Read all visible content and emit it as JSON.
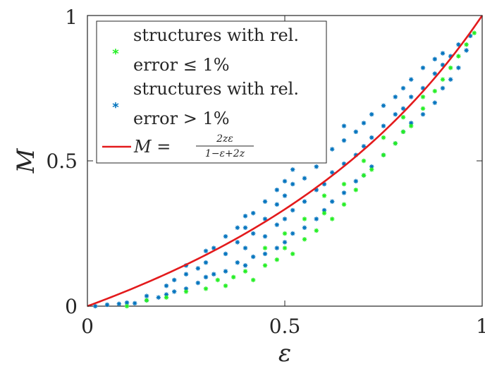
{
  "chart_data": {
    "type": "scatter",
    "xlabel": "ε",
    "ylabel": "M",
    "xlim": [
      0,
      1
    ],
    "ylim": [
      0,
      1
    ],
    "x_ticks": [
      "0",
      "0.5",
      "1"
    ],
    "y_ticks": [
      "0",
      "0.5",
      "1"
    ],
    "grid": false,
    "legend_position": "top-left",
    "z": 0.5,
    "series": [
      {
        "name": "structures with rel. error > 1%",
        "legend_lines": [
          "structures with rel.",
          "error > 1%"
        ],
        "marker": "*",
        "color": "#0072BD",
        "points": [
          [
            0.02,
            0.0
          ],
          [
            0.05,
            0.005
          ],
          [
            0.08,
            0.008
          ],
          [
            0.1,
            0.012
          ],
          [
            0.12,
            0.01
          ],
          [
            0.15,
            0.02
          ],
          [
            0.15,
            0.035
          ],
          [
            0.18,
            0.03
          ],
          [
            0.2,
            0.04
          ],
          [
            0.2,
            0.07
          ],
          [
            0.22,
            0.05
          ],
          [
            0.22,
            0.09
          ],
          [
            0.25,
            0.06
          ],
          [
            0.25,
            0.11
          ],
          [
            0.25,
            0.14
          ],
          [
            0.28,
            0.08
          ],
          [
            0.28,
            0.13
          ],
          [
            0.3,
            0.1
          ],
          [
            0.3,
            0.15
          ],
          [
            0.3,
            0.19
          ],
          [
            0.32,
            0.11
          ],
          [
            0.32,
            0.2
          ],
          [
            0.35,
            0.12
          ],
          [
            0.35,
            0.18
          ],
          [
            0.35,
            0.24
          ],
          [
            0.38,
            0.15
          ],
          [
            0.38,
            0.22
          ],
          [
            0.38,
            0.27
          ],
          [
            0.4,
            0.14
          ],
          [
            0.4,
            0.2
          ],
          [
            0.4,
            0.27
          ],
          [
            0.4,
            0.31
          ],
          [
            0.42,
            0.17
          ],
          [
            0.42,
            0.25
          ],
          [
            0.42,
            0.32
          ],
          [
            0.45,
            0.18
          ],
          [
            0.45,
            0.24
          ],
          [
            0.45,
            0.3
          ],
          [
            0.45,
            0.36
          ],
          [
            0.48,
            0.2
          ],
          [
            0.48,
            0.28
          ],
          [
            0.48,
            0.35
          ],
          [
            0.48,
            0.4
          ],
          [
            0.5,
            0.22
          ],
          [
            0.5,
            0.3
          ],
          [
            0.5,
            0.38
          ],
          [
            0.5,
            0.43
          ],
          [
            0.52,
            0.25
          ],
          [
            0.52,
            0.33
          ],
          [
            0.52,
            0.42
          ],
          [
            0.52,
            0.47
          ],
          [
            0.55,
            0.27
          ],
          [
            0.55,
            0.36
          ],
          [
            0.55,
            0.44
          ],
          [
            0.55,
            0.5
          ],
          [
            0.58,
            0.3
          ],
          [
            0.58,
            0.4
          ],
          [
            0.58,
            0.48
          ],
          [
            0.58,
            0.53
          ],
          [
            0.6,
            0.33
          ],
          [
            0.6,
            0.42
          ],
          [
            0.6,
            0.5
          ],
          [
            0.6,
            0.55
          ],
          [
            0.62,
            0.36
          ],
          [
            0.62,
            0.46
          ],
          [
            0.62,
            0.54
          ],
          [
            0.65,
            0.39
          ],
          [
            0.65,
            0.49
          ],
          [
            0.65,
            0.57
          ],
          [
            0.65,
            0.62
          ],
          [
            0.68,
            0.43
          ],
          [
            0.68,
            0.52
          ],
          [
            0.68,
            0.6
          ],
          [
            0.7,
            0.45
          ],
          [
            0.7,
            0.55
          ],
          [
            0.7,
            0.63
          ],
          [
            0.72,
            0.48
          ],
          [
            0.72,
            0.58
          ],
          [
            0.72,
            0.66
          ],
          [
            0.75,
            0.52
          ],
          [
            0.75,
            0.62
          ],
          [
            0.75,
            0.69
          ],
          [
            0.78,
            0.56
          ],
          [
            0.78,
            0.66
          ],
          [
            0.78,
            0.72
          ],
          [
            0.8,
            0.6
          ],
          [
            0.8,
            0.68
          ],
          [
            0.8,
            0.75
          ],
          [
            0.82,
            0.63
          ],
          [
            0.82,
            0.72
          ],
          [
            0.82,
            0.78
          ],
          [
            0.85,
            0.66
          ],
          [
            0.85,
            0.75
          ],
          [
            0.85,
            0.82
          ],
          [
            0.88,
            0.7
          ],
          [
            0.88,
            0.8
          ],
          [
            0.88,
            0.85
          ],
          [
            0.9,
            0.75
          ],
          [
            0.9,
            0.83
          ],
          [
            0.9,
            0.87
          ],
          [
            0.92,
            0.78
          ],
          [
            0.92,
            0.86
          ],
          [
            0.94,
            0.82
          ],
          [
            0.94,
            0.9
          ],
          [
            0.96,
            0.88
          ],
          [
            0.97,
            0.93
          ]
        ]
      },
      {
        "name": "structures with rel. error ≤ 1%",
        "legend_lines": [
          "structures with rel.",
          "error ≤ 1%"
        ],
        "marker": "*",
        "color": "#22EE22",
        "points": [
          [
            0.1,
            0.0
          ],
          [
            0.15,
            0.02
          ],
          [
            0.2,
            0.03
          ],
          [
            0.25,
            0.05
          ],
          [
            0.3,
            0.06
          ],
          [
            0.33,
            0.09
          ],
          [
            0.35,
            0.07
          ],
          [
            0.37,
            0.1
          ],
          [
            0.4,
            0.12
          ],
          [
            0.42,
            0.09
          ],
          [
            0.45,
            0.14
          ],
          [
            0.45,
            0.2
          ],
          [
            0.48,
            0.16
          ],
          [
            0.5,
            0.2
          ],
          [
            0.5,
            0.25
          ],
          [
            0.52,
            0.18
          ],
          [
            0.55,
            0.23
          ],
          [
            0.55,
            0.3
          ],
          [
            0.58,
            0.26
          ],
          [
            0.6,
            0.32
          ],
          [
            0.6,
            0.38
          ],
          [
            0.62,
            0.3
          ],
          [
            0.65,
            0.35
          ],
          [
            0.65,
            0.42
          ],
          [
            0.68,
            0.4
          ],
          [
            0.7,
            0.45
          ],
          [
            0.7,
            0.5
          ],
          [
            0.72,
            0.47
          ],
          [
            0.75,
            0.52
          ],
          [
            0.75,
            0.58
          ],
          [
            0.78,
            0.56
          ],
          [
            0.8,
            0.6
          ],
          [
            0.8,
            0.65
          ],
          [
            0.82,
            0.62
          ],
          [
            0.85,
            0.68
          ],
          [
            0.85,
            0.72
          ],
          [
            0.88,
            0.74
          ],
          [
            0.9,
            0.78
          ],
          [
            0.92,
            0.82
          ],
          [
            0.94,
            0.86
          ],
          [
            0.96,
            0.9
          ],
          [
            0.98,
            0.94
          ]
        ]
      }
    ],
    "curve": {
      "name": "M = 2zε / (1−ε+2z)",
      "legend_prefix": "M =",
      "legend_numerator": "2zε",
      "legend_denominator": "1−ε+2z",
      "color": "#E31A1C"
    }
  }
}
